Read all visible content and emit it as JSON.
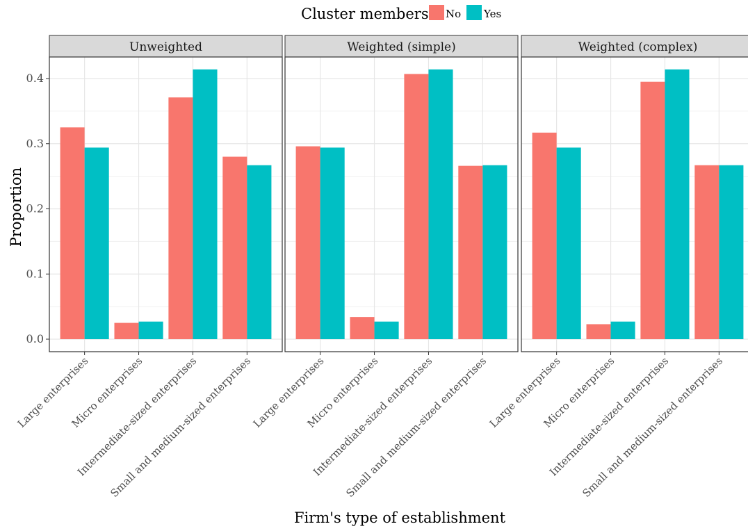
{
  "chart_data": {
    "type": "bar",
    "legend": {
      "title": "Cluster members",
      "position": "top"
    },
    "xlabel": "Firm's type of establishment",
    "ylabel": "Proportion",
    "ylim": [
      0,
      0.42
    ],
    "yticks": [
      0.0,
      0.1,
      0.2,
      0.3,
      0.4
    ],
    "ytick_labels": [
      "0.0",
      "0.1",
      "0.2",
      "0.3",
      "0.4"
    ],
    "grid": true,
    "categories": [
      "Large enterprises",
      "Micro enterprises",
      "Intermediate-sized enterprises",
      "Small and medium-sized enterprises"
    ],
    "series_styles": [
      {
        "name": "No",
        "color": "#F8766D"
      },
      {
        "name": "Yes",
        "color": "#00BFC4"
      }
    ],
    "panels": [
      {
        "title": "Unweighted",
        "series": [
          {
            "name": "No",
            "values": [
              0.325,
              0.025,
              0.371,
              0.28
            ]
          },
          {
            "name": "Yes",
            "values": [
              0.294,
              0.027,
              0.414,
              0.267
            ]
          }
        ]
      },
      {
        "title": "Weighted (simple)",
        "series": [
          {
            "name": "No",
            "values": [
              0.296,
              0.034,
              0.407,
              0.266
            ]
          },
          {
            "name": "Yes",
            "values": [
              0.294,
              0.027,
              0.414,
              0.267
            ]
          }
        ]
      },
      {
        "title": "Weighted (complex)",
        "series": [
          {
            "name": "No",
            "values": [
              0.317,
              0.023,
              0.395,
              0.267
            ]
          },
          {
            "name": "Yes",
            "values": [
              0.294,
              0.027,
              0.414,
              0.267
            ]
          }
        ]
      }
    ]
  }
}
